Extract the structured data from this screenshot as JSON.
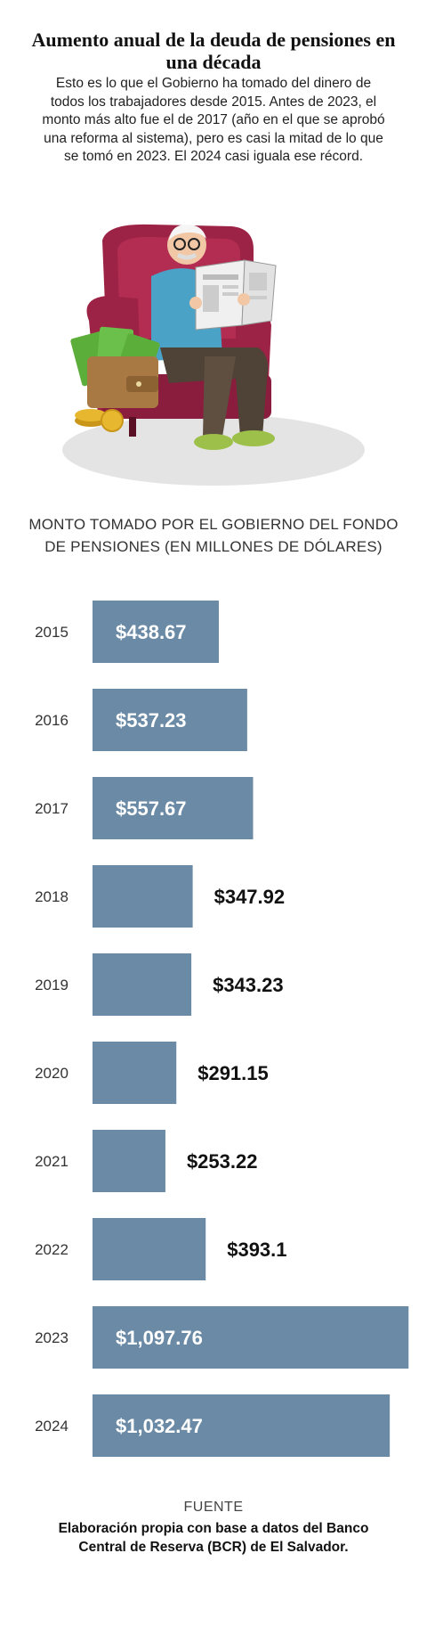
{
  "title": "Aumento anual de la deuda de pensiones en una década",
  "intro": "Esto es lo que el Gobierno ha tomado del dinero de todos los trabajadores desde 2015. Antes de 2023, el monto más alto fue el de 2017 (año en el que se aprobó una reforma al sistema), pero es casi la mitad de lo que se tomó en 2023. El 2024 casi iguala ese récord.",
  "chart_data": {
    "type": "bar",
    "orientation": "horizontal",
    "title": "MONTO TOMADO POR EL GOBIERNO DEL FONDO DE PENSIONES (EN MILLONES DE DÓLARES)",
    "xlabel": "",
    "ylabel": "",
    "categories": [
      "2015",
      "2016",
      "2017",
      "2018",
      "2019",
      "2020",
      "2021",
      "2022",
      "2023",
      "2024"
    ],
    "values": [
      438.67,
      537.23,
      557.67,
      347.92,
      343.23,
      291.15,
      253.22,
      393.1,
      1097.76,
      1032.47
    ],
    "data_labels": [
      "$438.67",
      "$537.23",
      "$557.67",
      "$347.92",
      "$343.23",
      "$291.15",
      "$253.22",
      "$393.1",
      "$1,097.76",
      "$1,032.47"
    ],
    "xlim": [
      0,
      1100
    ],
    "grid": false,
    "legend": "none",
    "bar_color": "#6a8aa5"
  },
  "source": {
    "label": "FUENTE",
    "text": "Elaboración propia con base a datos del Banco Central de Reserva (BCR) de El Salvador."
  },
  "illustration": {
    "description_icon": "elderly-man-reading-newspaper-illustration"
  }
}
